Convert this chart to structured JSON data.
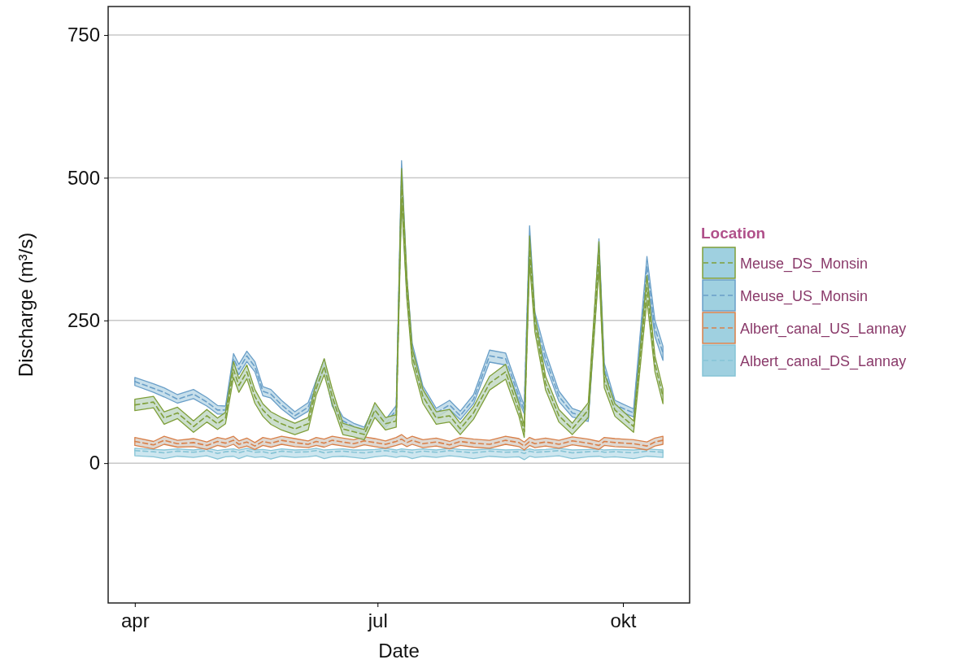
{
  "chart_data": {
    "type": "line",
    "xlabel": "Date",
    "ylabel": "Discharge (m³/s)",
    "legend_title": "Location",
    "legend": "right",
    "grid": "y",
    "line_style": "dashed",
    "marker": "none",
    "xlim": [
      "--03-22",
      "--10-26"
    ],
    "xticks": [
      {
        "value": "--04-01",
        "label": "apr"
      },
      {
        "value": "--07-01",
        "label": "jul"
      },
      {
        "value": "--10-01",
        "label": "okt"
      }
    ],
    "ylim": [
      -245,
      800
    ],
    "yticks": [
      0,
      250,
      500,
      750
    ],
    "x": [
      "--04-01",
      "--04-08",
      "--04-12",
      "--04-17",
      "--04-23",
      "--04-28",
      "--05-02",
      "--05-05",
      "--05-08",
      "--05-10",
      "--05-13",
      "--05-16",
      "--05-19",
      "--05-22",
      "--05-26",
      "--05-31",
      "--06-05",
      "--06-08",
      "--06-11",
      "--06-14",
      "--06-18",
      "--06-22",
      "--06-26",
      "--06-30",
      "--07-04",
      "--07-08",
      "--07-10",
      "--07-12",
      "--07-14",
      "--07-18",
      "--07-23",
      "--07-28",
      "--08-01",
      "--08-06",
      "--08-12",
      "--08-18",
      "--08-23",
      "--08-25",
      "--08-27",
      "--08-29",
      "--09-02",
      "--09-07",
      "--09-12",
      "--09-18",
      "--09-22",
      "--09-24",
      "--09-28",
      "--10-05",
      "--10-10",
      "--10-13",
      "--10-16"
    ],
    "series": [
      {
        "name": "Meuse_DS_Monsin",
        "color": "#7f9f3a",
        "values": [
          102,
          107,
          79,
          88,
          64,
          83,
          69,
          79,
          164,
          136,
          160,
          117,
          93,
          79,
          69,
          60,
          69,
          131,
          169,
          117,
          60,
          55,
          50,
          93,
          69,
          74,
          488,
          307,
          188,
          117,
          79,
          83,
          60,
          88,
          140,
          160,
          93,
          55,
          374,
          245,
          140,
          83,
          60,
          93,
          364,
          145,
          93,
          64,
          307,
          174,
          117
        ],
        "lower": [
          92,
          97,
          68,
          78,
          54,
          72,
          59,
          69,
          150,
          124,
          148,
          105,
          82,
          68,
          58,
          50,
          58,
          119,
          155,
          104,
          50,
          46,
          41,
          80,
          58,
          63,
          460,
          288,
          175,
          105,
          68,
          72,
          50,
          77,
          128,
          147,
          82,
          45,
          350,
          230,
          128,
          72,
          50,
          80,
          340,
          132,
          82,
          54,
          285,
          160,
          104
        ],
        "upper": [
          112,
          117,
          90,
          98,
          74,
          94,
          79,
          89,
          178,
          148,
          172,
          129,
          104,
          90,
          80,
          70,
          80,
          143,
          183,
          130,
          70,
          64,
          59,
          106,
          80,
          85,
          516,
          326,
          201,
          129,
          90,
          94,
          70,
          99,
          152,
          173,
          104,
          65,
          398,
          260,
          152,
          94,
          70,
          106,
          388,
          158,
          104,
          74,
          329,
          188,
          130
        ]
      },
      {
        "name": "Meuse_US_Monsin",
        "color": "#6a9fc8",
        "values": [
          143,
          131,
          124,
          112,
          121,
          107,
          93,
          93,
          183,
          164,
          188,
          169,
          126,
          121,
          102,
          83,
          98,
          136,
          174,
          107,
          74,
          64,
          57,
          93,
          69,
          93,
          498,
          307,
          198,
          126,
          88,
          102,
          83,
          112,
          188,
          183,
          117,
          93,
          393,
          250,
          183,
          117,
          88,
          79,
          374,
          164,
          102,
          88,
          345,
          236,
          193
        ],
        "lower": [
          136,
          124,
          116,
          105,
          113,
          100,
          86,
          86,
          172,
          155,
          178,
          160,
          118,
          114,
          95,
          77,
          91,
          127,
          165,
          100,
          68,
          58,
          52,
          85,
          62,
          85,
          470,
          290,
          186,
          117,
          80,
          94,
          76,
          104,
          177,
          172,
          109,
          86,
          370,
          236,
          172,
          108,
          81,
          73,
          350,
          153,
          94,
          81,
          325,
          222,
          180
        ],
        "upper": [
          150,
          139,
          132,
          120,
          129,
          115,
          101,
          100,
          192,
          173,
          196,
          178,
          134,
          129,
          110,
          90,
          106,
          145,
          182,
          115,
          81,
          70,
          63,
          101,
          76,
          101,
          530,
          325,
          210,
          135,
          96,
          110,
          91,
          120,
          198,
          193,
          126,
          101,
          416,
          264,
          194,
          126,
          96,
          86,
          393,
          175,
          110,
          95,
          362,
          250,
          205
        ]
      },
      {
        "name": "Albert_canal_US_Lannay",
        "color": "#d9804a",
        "values": [
          38,
          32,
          40,
          34,
          36,
          31,
          38,
          35,
          40,
          33,
          37,
          30,
          38,
          35,
          40,
          36,
          33,
          38,
          35,
          40,
          37,
          34,
          39,
          36,
          33,
          38,
          42,
          36,
          40,
          34,
          37,
          32,
          38,
          35,
          33,
          40,
          36,
          30,
          38,
          34,
          37,
          33,
          39,
          35,
          31,
          38,
          36,
          34,
          30,
          37,
          40
        ],
        "lower": [
          31,
          25,
          33,
          28,
          29,
          24,
          31,
          28,
          33,
          26,
          30,
          24,
          31,
          28,
          33,
          29,
          27,
          31,
          28,
          33,
          30,
          27,
          32,
          29,
          26,
          31,
          34,
          29,
          33,
          27,
          30,
          25,
          31,
          28,
          26,
          33,
          29,
          23,
          31,
          27,
          30,
          26,
          32,
          28,
          24,
          31,
          29,
          27,
          23,
          30,
          33
        ],
        "upper": [
          45,
          38,
          47,
          40,
          43,
          37,
          45,
          42,
          47,
          39,
          44,
          36,
          45,
          42,
          47,
          43,
          39,
          45,
          42,
          47,
          44,
          41,
          46,
          43,
          39,
          45,
          50,
          43,
          47,
          41,
          44,
          38,
          45,
          42,
          40,
          47,
          43,
          37,
          45,
          41,
          44,
          40,
          46,
          42,
          38,
          45,
          43,
          41,
          37,
          44,
          47
        ]
      },
      {
        "name": "Albert_canal_DS_Lannay",
        "color": "#86c4d6",
        "values": [
          22,
          20,
          18,
          21,
          19,
          22,
          17,
          20,
          21,
          18,
          22,
          19,
          20,
          17,
          21,
          19,
          20,
          22,
          18,
          20,
          21,
          19,
          18,
          20,
          22,
          19,
          21,
          20,
          18,
          21,
          19,
          22,
          20,
          18,
          21,
          19,
          20,
          17,
          21,
          19,
          20,
          22,
          18,
          20,
          21,
          19,
          20,
          18,
          21,
          20,
          19
        ],
        "lower": [
          13,
          11,
          8,
          12,
          10,
          13,
          7,
          11,
          12,
          8,
          13,
          10,
          11,
          7,
          12,
          10,
          11,
          13,
          8,
          11,
          12,
          10,
          8,
          11,
          13,
          10,
          12,
          11,
          8,
          12,
          10,
          13,
          11,
          8,
          12,
          10,
          11,
          6,
          12,
          10,
          11,
          13,
          8,
          11,
          12,
          10,
          11,
          8,
          12,
          11,
          10
        ],
        "upper": [
          26,
          24,
          23,
          25,
          23,
          26,
          22,
          24,
          25,
          23,
          26,
          23,
          24,
          22,
          25,
          23,
          24,
          26,
          23,
          24,
          25,
          23,
          23,
          24,
          26,
          23,
          25,
          24,
          23,
          25,
          23,
          26,
          24,
          23,
          25,
          23,
          24,
          22,
          25,
          23,
          24,
          26,
          23,
          24,
          25,
          23,
          24,
          23,
          25,
          24,
          23
        ]
      }
    ]
  }
}
